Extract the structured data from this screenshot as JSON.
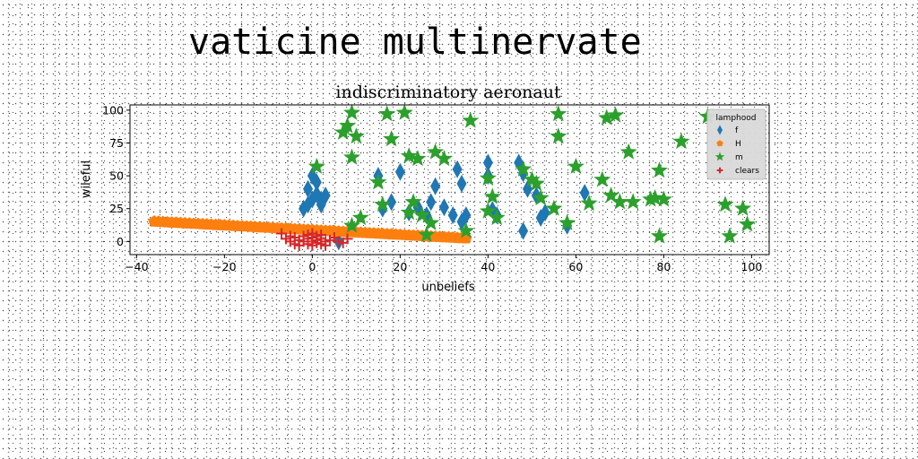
{
  "page": {
    "heading": "vaticine multinervate"
  },
  "chart_data": {
    "type": "scatter",
    "title": "indiscriminatory aeronaut",
    "xlabel": "unbeliefs",
    "ylabel": "wileful",
    "xlim": [
      -41.5,
      104
    ],
    "ylim": [
      -10,
      104
    ],
    "xticks": [
      -40,
      -20,
      0,
      20,
      40,
      60,
      80,
      100
    ],
    "xtick_labels": [
      "−40",
      "−20",
      "0",
      "20",
      "40",
      "60",
      "80",
      "100"
    ],
    "yticks": [
      0,
      25,
      50,
      75,
      100
    ],
    "ytick_labels": [
      "0",
      "25",
      "50",
      "75",
      "100"
    ],
    "grid": false,
    "legend": {
      "title": "lamphood",
      "placement": "upper right"
    },
    "series": [
      {
        "name": "f",
        "marker": "diamond",
        "color": "#1f77b4",
        "x": [
          -2,
          -1,
          0,
          1,
          2,
          3,
          0,
          1,
          -1,
          2,
          6,
          15,
          16,
          18,
          20,
          22,
          24,
          26,
          27,
          28,
          30,
          32,
          33,
          34,
          35,
          34,
          40,
          40,
          41,
          42,
          47,
          48,
          49,
          51,
          52,
          53,
          48,
          58,
          62
        ],
        "y": [
          25,
          28,
          32,
          36,
          32,
          35,
          50,
          45,
          40,
          28,
          0,
          50,
          25,
          30,
          53,
          22,
          26,
          20,
          30,
          42,
          26,
          20,
          55,
          44,
          20,
          15,
          60,
          50,
          24,
          20,
          60,
          52,
          40,
          35,
          18,
          22,
          8,
          12,
          37
        ]
      },
      {
        "name": "H",
        "marker": "pentagon",
        "color": "#ff7f0e",
        "x": [
          -36,
          -35,
          -34,
          -33,
          -32,
          -31,
          -30,
          -29,
          -28,
          -27,
          -26,
          -25,
          -24,
          -23,
          -22,
          -21,
          -20,
          -19,
          -18,
          -17,
          -16,
          -15,
          -14,
          -13,
          -12,
          -11,
          -10,
          -9,
          -8,
          -7,
          -6,
          -5,
          -4,
          -3,
          -2,
          -1,
          0,
          1,
          2,
          3,
          4,
          5,
          6,
          7,
          8,
          9,
          10,
          11,
          12,
          13,
          14,
          15,
          16,
          17,
          18,
          19,
          20,
          21,
          22,
          23,
          24,
          25,
          26,
          27,
          28,
          29,
          30,
          31,
          32,
          33,
          34,
          35
        ],
        "y": [
          15.2,
          15,
          14.8,
          14.6,
          14.4,
          14.3,
          14.1,
          13.9,
          13.7,
          13.5,
          13.4,
          13.2,
          13,
          12.8,
          12.6,
          12.5,
          12.3,
          12.1,
          11.9,
          11.7,
          11.6,
          11.4,
          11.2,
          11,
          10.8,
          10.7,
          10.5,
          10.3,
          10.1,
          9.9,
          9.8,
          9.6,
          9.4,
          9.2,
          9,
          8.9,
          8.7,
          8.5,
          8.3,
          8.1,
          8,
          7.8,
          7.6,
          7.4,
          7.2,
          7.1,
          6.9,
          6.7,
          6.5,
          6.3,
          6.2,
          6,
          5.8,
          5.6,
          5.4,
          5.3,
          5.1,
          4.9,
          4.7,
          4.5,
          4.4,
          4.2,
          4,
          3.8,
          3.6,
          3.5,
          3.3,
          3.1,
          2.9,
          2.7,
          2.6,
          2.4
        ]
      },
      {
        "name": "m",
        "marker": "star",
        "color": "#2ca02c",
        "x": [
          1,
          7,
          8,
          9,
          9,
          10,
          11,
          9,
          15,
          16,
          17,
          18,
          21,
          22,
          22,
          23,
          24,
          25,
          26,
          27,
          28,
          30,
          36,
          35,
          40,
          40,
          41,
          42,
          48,
          50,
          51,
          52,
          55,
          56,
          56,
          58,
          60,
          63,
          66,
          67,
          68,
          69,
          70,
          72,
          73,
          77,
          78,
          79,
          79,
          80,
          84,
          90,
          94,
          95,
          98,
          99
        ],
        "y": [
          57,
          83,
          88,
          98,
          64,
          80,
          18,
          12,
          45,
          28,
          97,
          78,
          98,
          22,
          65,
          30,
          63,
          20,
          5,
          14,
          68,
          63,
          92,
          8,
          48,
          23,
          34,
          18,
          55,
          47,
          44,
          33,
          25,
          97,
          80,
          14,
          57,
          29,
          47,
          94,
          35,
          96,
          30,
          68,
          30,
          32,
          33,
          54,
          4,
          32,
          76,
          95,
          28,
          4,
          25,
          13
        ]
      },
      {
        "name": "clears",
        "marker": "plus",
        "color": "#d62728",
        "x": [
          -7,
          -6,
          -5,
          -5,
          -4,
          -4,
          -3,
          -3,
          -2,
          -2,
          -1,
          -1,
          -1,
          0,
          0,
          0,
          0,
          1,
          1,
          1,
          2,
          2,
          2,
          3,
          3,
          4,
          5,
          6,
          7,
          8
        ],
        "y": [
          6,
          2,
          0,
          4,
          -2,
          3,
          1,
          -3,
          4,
          0,
          -2,
          2,
          5,
          0,
          -3,
          3,
          6,
          1,
          -1,
          4,
          -2,
          2,
          5,
          0,
          -3,
          1,
          3,
          0,
          -1,
          2
        ]
      }
    ]
  }
}
